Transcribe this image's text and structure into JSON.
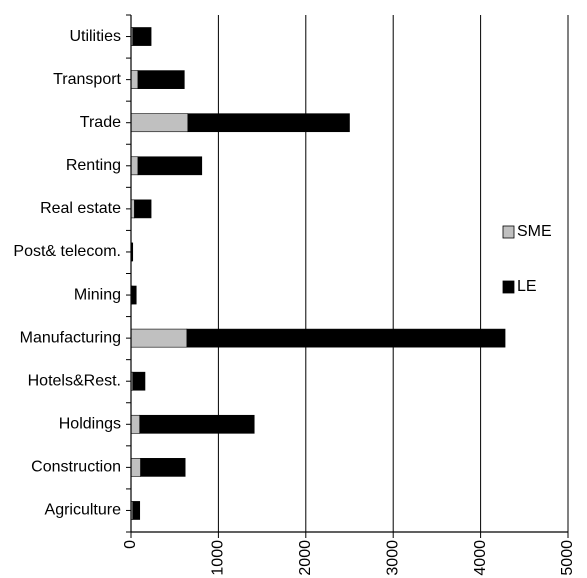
{
  "chart_data": {
    "type": "bar",
    "orientation": "horizontal",
    "stacked": true,
    "categories": [
      "Utilities",
      "Transport",
      "Trade",
      "Renting",
      "Real estate",
      "Post& telecom.",
      "Mining",
      "Manufacturing",
      "Hotels&Rest.",
      "Holdings",
      "Construction",
      "Agriculture"
    ],
    "series": [
      {
        "name": "SME",
        "color": "#c0c0c0",
        "values": [
          20,
          80,
          650,
          80,
          40,
          5,
          10,
          640,
          20,
          100,
          110,
          20
        ]
      },
      {
        "name": "LE",
        "color": "#000000",
        "values": [
          210,
          530,
          1850,
          730,
          190,
          15,
          50,
          3640,
          140,
          1310,
          510,
          80
        ]
      }
    ],
    "title": "",
    "xlabel": "",
    "ylabel": "",
    "xlim": [
      0,
      5000
    ],
    "xticks": [
      "0",
      "1000",
      "2000",
      "3000",
      "4000",
      "5000"
    ],
    "grid": "vertical",
    "legend": "right"
  }
}
